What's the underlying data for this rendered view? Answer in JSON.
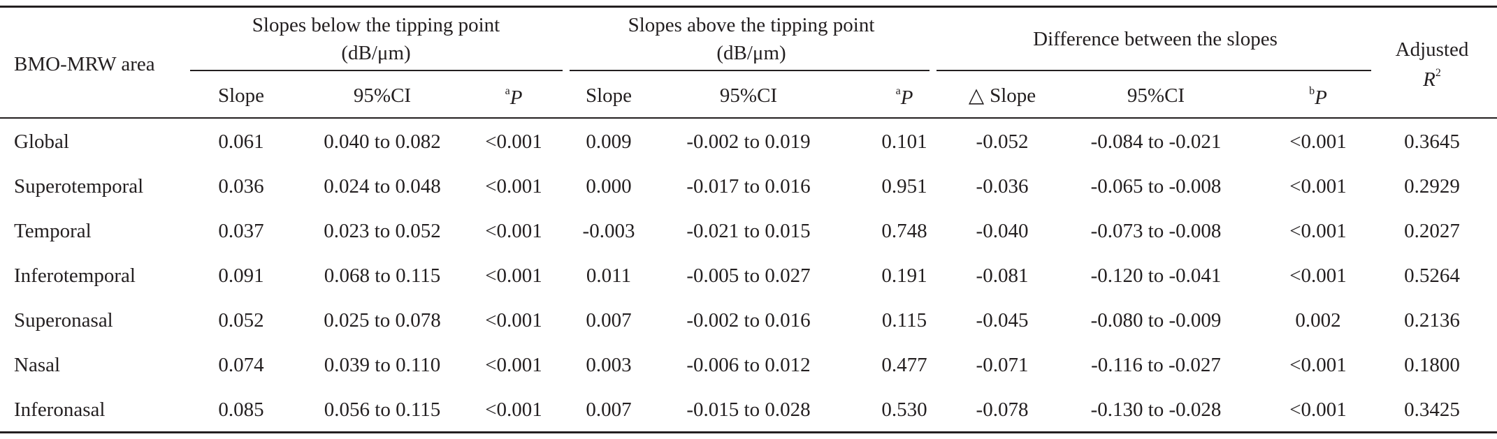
{
  "table": {
    "stub_header": "BMO-MRW area",
    "groups": [
      {
        "title_line1": "Slopes below the tipping point",
        "title_line2": "(dB/μm)"
      },
      {
        "title_line1": "Slopes above the tipping point",
        "title_line2": "(dB/μm)"
      },
      {
        "title_line1": "Difference between the slopes"
      }
    ],
    "last_header": {
      "line1": "Adjusted",
      "line2": "R",
      "line2_sup": "2"
    },
    "sub_headers": [
      {
        "label": "Slope"
      },
      {
        "label": "95%CI"
      },
      {
        "sup": "a",
        "label": "P"
      },
      {
        "label": "Slope"
      },
      {
        "label": "95%CI"
      },
      {
        "sup": "a",
        "label": "P"
      },
      {
        "symbol": "△",
        "label": "Slope"
      },
      {
        "label": "95%CI"
      },
      {
        "sup": "b",
        "label": "P"
      }
    ],
    "rows": [
      [
        "Global",
        "0.061",
        "0.040 to 0.082",
        "<0.001",
        "0.009",
        "-0.002 to 0.019",
        "0.101",
        "-0.052",
        "-0.084 to -0.021",
        "<0.001",
        "0.3645"
      ],
      [
        "Superotemporal",
        "0.036",
        "0.024 to 0.048",
        "<0.001",
        "0.000",
        "-0.017 to 0.016",
        "0.951",
        "-0.036",
        "-0.065 to -0.008",
        "<0.001",
        "0.2929"
      ],
      [
        "Temporal",
        "0.037",
        "0.023 to 0.052",
        "<0.001",
        "-0.003",
        "-0.021 to 0.015",
        "0.748",
        "-0.040",
        "-0.073 to -0.008",
        "<0.001",
        "0.2027"
      ],
      [
        "Inferotemporal",
        "0.091",
        "0.068 to 0.115",
        "<0.001",
        "0.011",
        "-0.005 to 0.027",
        "0.191",
        "-0.081",
        "-0.120 to -0.041",
        "<0.001",
        "0.5264"
      ],
      [
        "Superonasal",
        "0.052",
        "0.025 to 0.078",
        "<0.001",
        "0.007",
        "-0.002 to 0.016",
        "0.115",
        "-0.045",
        "-0.080 to -0.009",
        "0.002",
        "0.2136"
      ],
      [
        "Nasal",
        "0.074",
        "0.039 to 0.110",
        "<0.001",
        "0.003",
        "-0.006 to 0.012",
        "0.477",
        "-0.071",
        "-0.116 to -0.027",
        "<0.001",
        "0.1800"
      ],
      [
        "Inferonasal",
        "0.085",
        "0.056 to 0.115",
        "<0.001",
        "0.007",
        "-0.015 to 0.028",
        "0.530",
        "-0.078",
        "-0.130 to -0.028",
        "<0.001",
        "0.3425"
      ]
    ]
  }
}
